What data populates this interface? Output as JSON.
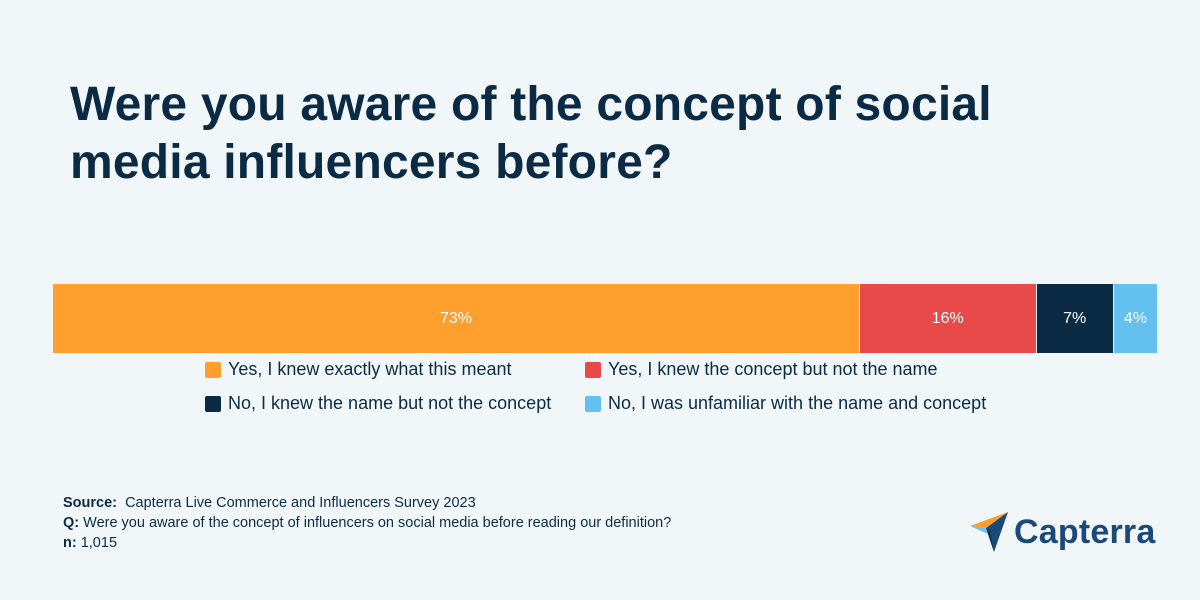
{
  "chart_data": {
    "type": "bar",
    "orientation": "horizontal-stacked-100",
    "title": "Were you aware of the concept of social media influencers before?",
    "series": [
      {
        "name": "Yes, I knew exactly what this meant",
        "value": 73,
        "label": "73%",
        "color": "#ff9f2e"
      },
      {
        "name": "Yes, I knew the concept but not the name",
        "value": 16,
        "label": "16%",
        "color": "#e84a4a"
      },
      {
        "name": "No, I knew the name but not the concept",
        "value": 7,
        "label": "7%",
        "color": "#0b2b44"
      },
      {
        "name": "No, I was unfamiliar with the name and concept",
        "value": 4,
        "label": "4%",
        "color": "#64c1ef"
      }
    ],
    "legend_position": "bottom",
    "xlim": [
      0,
      100
    ]
  },
  "notes": {
    "source_label": "Source:",
    "source_text": "Capterra Live Commerce and Influencers Survey 2023",
    "q_label": "Q:",
    "q_text": "Were you aware of the concept of influencers on social media before reading our definition?",
    "n_label": "n:",
    "n_text": "1,015"
  },
  "brand": {
    "name": "Capterra",
    "logo_icon": "capterra-arrow-icon",
    "colors": {
      "orange": "#ff9d28",
      "yellow": "#ffcc00",
      "blue": "#1c4a78",
      "lightblue": "#68c5ed"
    }
  }
}
